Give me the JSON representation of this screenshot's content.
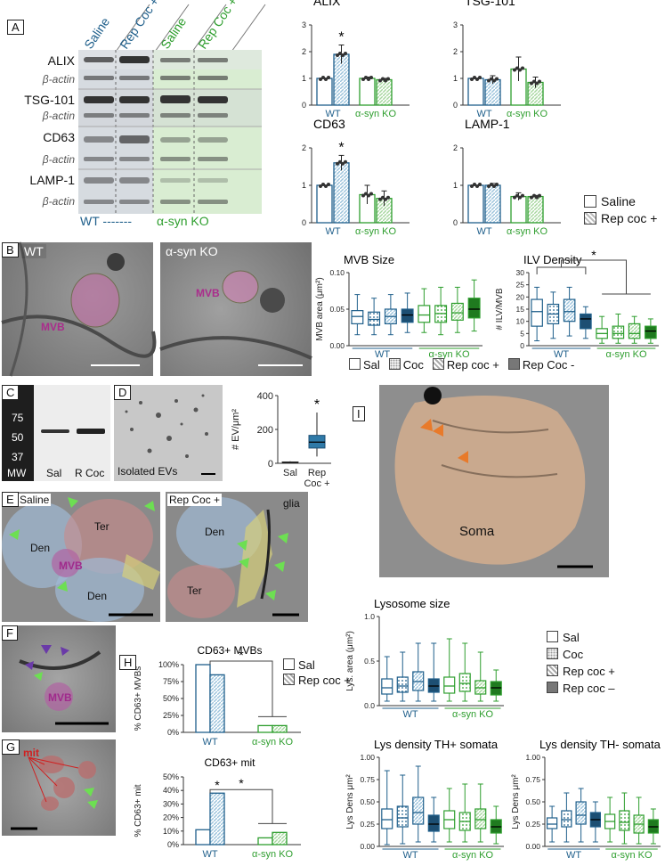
{
  "panels": {
    "A": {
      "label": "A",
      "lane_headers": [
        "Saline",
        "Rep Coc +",
        "Saline",
        "Rep Coc +"
      ],
      "blot_rows": [
        "ALIX",
        "β-actin",
        "TSG-101",
        "β-actin",
        "CD63",
        "β-actin",
        "LAMP-1",
        "β-actin"
      ],
      "group_wt": "WT -------",
      "group_ko": "α-syn KO"
    },
    "B": {
      "label": "B",
      "wt": "WT",
      "ko": "α-syn KO",
      "mvb": "MVB"
    },
    "C": {
      "label": "C",
      "mw": [
        "75",
        "50",
        "37"
      ],
      "mw_label": "MW",
      "lanes": [
        "Sal",
        "R Coc"
      ]
    },
    "D": {
      "label": "D",
      "caption": "Isolated EVs"
    },
    "E": {
      "label": "E",
      "saline": "Saline",
      "repcoc": "Rep Coc +",
      "glia": "glia",
      "den": "Den",
      "ter": "Ter",
      "mvb": "MVB"
    },
    "F": {
      "label": "F",
      "mvb": "MVB"
    },
    "G": {
      "label": "G",
      "mit": "mit"
    },
    "H": {
      "label": "H"
    },
    "I": {
      "label": "I",
      "soma": "Soma"
    }
  },
  "legends": {
    "A": [
      "Saline",
      "Rep coc +"
    ],
    "B": [
      "Sal",
      "Coc",
      "Rep coc +",
      "Rep Coc -"
    ],
    "H": [
      "Sal",
      "Rep coc +"
    ],
    "I": [
      "Sal",
      "Coc",
      "Rep coc +",
      "Rep coc –"
    ]
  },
  "colors": {
    "wt": "#1f5f8b",
    "ko": "#2e9e2e",
    "wt_fill": "#9cc3dc",
    "ko_fill": "#a8d8a0",
    "wt_dark": "#1d4f73",
    "ko_dark": "#1f7a1f"
  },
  "chart_data": [
    {
      "id": "alix",
      "type": "bar",
      "title": "ALIX",
      "groups": [
        "WT",
        "α-syn KO"
      ],
      "categories": [
        "Saline",
        "Rep coc +",
        "Saline",
        "Rep coc +"
      ],
      "values": [
        1.0,
        1.9,
        1.0,
        0.95
      ],
      "errors": [
        0.0,
        0.35,
        0.05,
        0.05
      ],
      "ylim": [
        0,
        3
      ],
      "yticks": [
        "0",
        "1",
        "2",
        "3"
      ],
      "significance": "*"
    },
    {
      "id": "tsg101",
      "type": "bar",
      "title": "TSG-101",
      "groups": [
        "WT",
        "α-syn KO"
      ],
      "categories": [
        "Saline",
        "Rep coc +",
        "Saline",
        "Rep coc +"
      ],
      "values": [
        1.0,
        0.95,
        1.35,
        0.85
      ],
      "errors": [
        0.0,
        0.15,
        0.45,
        0.2
      ],
      "ylim": [
        0,
        3
      ],
      "yticks": [
        "0",
        "1",
        "2",
        "3"
      ]
    },
    {
      "id": "cd63",
      "type": "bar",
      "title": "CD63",
      "groups": [
        "WT",
        "α-syn KO"
      ],
      "categories": [
        "Saline",
        "Rep coc +",
        "Saline",
        "Rep coc +"
      ],
      "values": [
        1.0,
        1.6,
        0.75,
        0.65
      ],
      "errors": [
        0.0,
        0.2,
        0.25,
        0.2
      ],
      "ylim": [
        0,
        2
      ],
      "yticks": [
        "0",
        "1",
        "2"
      ],
      "significance": "*"
    },
    {
      "id": "lamp1",
      "type": "bar",
      "title": "LAMP-1",
      "groups": [
        "WT",
        "α-syn KO"
      ],
      "categories": [
        "Saline",
        "Rep coc +",
        "Saline",
        "Rep coc +"
      ],
      "values": [
        1.0,
        1.0,
        0.7,
        0.7
      ],
      "errors": [
        0.0,
        0.05,
        0.1,
        0.03
      ],
      "ylim": [
        0,
        2
      ],
      "yticks": [
        "0",
        "1",
        "2"
      ]
    },
    {
      "id": "mvb_size",
      "type": "box",
      "title": "MVB Size",
      "ylabel": "MVB area (μm²)",
      "groups": [
        "WT",
        "α-syn KO"
      ],
      "categories": [
        "Sal",
        "Coc",
        "Rep coc +",
        "Rep Coc -",
        "Sal",
        "Coc",
        "Rep coc +",
        "Rep Coc -"
      ],
      "ylim": [
        0,
        0.1
      ],
      "yticks": [
        "0.00",
        "0.05",
        "0.10"
      ],
      "boxes": [
        [
          0.015,
          0.03,
          0.04,
          0.048,
          0.07
        ],
        [
          0.015,
          0.028,
          0.036,
          0.046,
          0.065
        ],
        [
          0.015,
          0.03,
          0.04,
          0.05,
          0.07
        ],
        [
          0.018,
          0.032,
          0.042,
          0.05,
          0.072
        ],
        [
          0.018,
          0.032,
          0.042,
          0.055,
          0.078
        ],
        [
          0.015,
          0.032,
          0.044,
          0.055,
          0.08
        ],
        [
          0.018,
          0.035,
          0.045,
          0.058,
          0.08
        ],
        [
          0.02,
          0.038,
          0.05,
          0.065,
          0.09
        ]
      ]
    },
    {
      "id": "ilv_density",
      "type": "box",
      "title": "ILV Density",
      "ylabel": "# ILV/MVB",
      "groups": [
        "WT",
        "α-syn KO"
      ],
      "categories": [
        "Sal",
        "Coc",
        "Rep coc +",
        "Rep Coc -",
        "Sal",
        "Coc",
        "Rep coc +",
        "Rep Coc -"
      ],
      "ylim": [
        0,
        30
      ],
      "yticks": [
        "0",
        "5",
        "10",
        "15",
        "20",
        "25",
        "30"
      ],
      "boxes": [
        [
          2,
          8,
          14,
          19,
          24
        ],
        [
          3,
          9,
          13,
          17,
          22
        ],
        [
          4,
          10,
          14,
          19,
          24
        ],
        [
          3,
          7,
          11,
          13,
          16
        ],
        [
          1,
          3,
          5,
          7,
          12
        ],
        [
          1,
          3,
          5,
          8,
          13
        ],
        [
          1,
          3,
          5,
          9,
          12
        ],
        [
          1,
          3,
          6,
          8,
          11
        ]
      ],
      "significance": "*"
    },
    {
      "id": "ev_density",
      "type": "box",
      "ylabel": "# EV/μm²",
      "categories": [
        "Sal",
        "Rep Coc +"
      ],
      "ylim": [
        0,
        400
      ],
      "yticks": [
        "0",
        "200",
        "400"
      ],
      "boxes": [
        [
          0,
          2,
          5,
          8,
          12
        ],
        [
          40,
          90,
          125,
          165,
          300
        ]
      ],
      "significance": "*"
    },
    {
      "id": "cd63_mvbs",
      "type": "bar",
      "title": "CD63+ MVBs",
      "ylabel": "% CD63+ MVBs",
      "groups": [
        "WT",
        "α-syn KO"
      ],
      "categories": [
        "Sal",
        "Rep coc +",
        "Sal",
        "Rep coc +"
      ],
      "values": [
        100,
        85,
        10,
        10
      ],
      "ylim": [
        0,
        100
      ],
      "yticks": [
        "0%",
        "25%",
        "50%",
        "75%",
        "100%"
      ],
      "significance": "*"
    },
    {
      "id": "cd63_mit",
      "type": "bar",
      "title": "CD63+ mit",
      "ylabel": "% CD63+ mit",
      "groups": [
        "WT",
        "α-syn KO"
      ],
      "categories": [
        "Sal",
        "Rep coc +",
        "Sal",
        "Rep coc +"
      ],
      "values": [
        11,
        38,
        5,
        9
      ],
      "ylim": [
        0,
        50
      ],
      "yticks": [
        "0%",
        "10%",
        "20%",
        "30%",
        "40%",
        "50%"
      ],
      "significance": "*"
    },
    {
      "id": "lys_size",
      "type": "box",
      "title": "Lysosome size",
      "ylabel": "Lys. area (μm²)",
      "groups": [
        "WT",
        "α-syn KO"
      ],
      "categories": [
        "Sal",
        "Coc",
        "Rep coc +",
        "Rep coc –",
        "Sal",
        "Coc",
        "Rep coc +",
        "Rep coc –"
      ],
      "ylim": [
        0,
        1
      ],
      "yticks": [
        "0.0",
        "0.5",
        "1.0"
      ],
      "boxes": [
        [
          0.05,
          0.13,
          0.2,
          0.3,
          0.55
        ],
        [
          0.05,
          0.15,
          0.22,
          0.32,
          0.6
        ],
        [
          0.05,
          0.17,
          0.27,
          0.38,
          0.7
        ],
        [
          0.05,
          0.15,
          0.22,
          0.3,
          0.7
        ],
        [
          0.05,
          0.14,
          0.22,
          0.32,
          0.75
        ],
        [
          0.05,
          0.16,
          0.25,
          0.36,
          0.7
        ],
        [
          0.05,
          0.13,
          0.2,
          0.28,
          0.6
        ],
        [
          0.05,
          0.12,
          0.2,
          0.27,
          0.4
        ]
      ]
    },
    {
      "id": "lys_th_pos",
      "type": "box",
      "title": "Lys density TH+ somata",
      "ylabel": "Lys Dens μm²",
      "groups": [
        "WT",
        "α-syn KO"
      ],
      "categories": [
        "Sal",
        "Coc",
        "Rep coc +",
        "Rep coc –",
        "Sal",
        "Coc",
        "Rep coc +",
        "Rep coc –"
      ],
      "ylim": [
        0,
        1
      ],
      "yticks": [
        "0.00",
        "0.25",
        "0.50",
        "0.75",
        "1.00"
      ],
      "boxes": [
        [
          0.02,
          0.2,
          0.3,
          0.42,
          0.85
        ],
        [
          0.03,
          0.22,
          0.32,
          0.45,
          0.8
        ],
        [
          0.05,
          0.25,
          0.38,
          0.55,
          0.9
        ],
        [
          0.05,
          0.17,
          0.25,
          0.35,
          0.55
        ],
        [
          0.05,
          0.2,
          0.3,
          0.4,
          0.65
        ],
        [
          0.05,
          0.18,
          0.28,
          0.38,
          0.7
        ],
        [
          0.05,
          0.2,
          0.3,
          0.42,
          0.7
        ],
        [
          0.03,
          0.15,
          0.22,
          0.3,
          0.45
        ]
      ]
    },
    {
      "id": "lys_th_neg",
      "type": "box",
      "title": "Lys density TH- somata",
      "ylabel": "Lys Dens μm²",
      "groups": [
        "WT",
        "α-syn KO"
      ],
      "categories": [
        "Sal",
        "Coc",
        "Rep coc +",
        "Rep coc –",
        "Sal",
        "Coc",
        "Rep coc +",
        "Rep coc –"
      ],
      "ylim": [
        0,
        1
      ],
      "yticks": [
        "0.00",
        "0.25",
        "0.50",
        "0.75",
        "1.00"
      ],
      "boxes": [
        [
          0.05,
          0.2,
          0.25,
          0.32,
          0.45
        ],
        [
          0.05,
          0.22,
          0.3,
          0.4,
          0.6
        ],
        [
          0.05,
          0.25,
          0.35,
          0.5,
          0.65
        ],
        [
          0.05,
          0.22,
          0.3,
          0.38,
          0.5
        ],
        [
          0.05,
          0.2,
          0.28,
          0.36,
          0.55
        ],
        [
          0.03,
          0.18,
          0.27,
          0.4,
          0.6
        ],
        [
          0.03,
          0.15,
          0.25,
          0.35,
          0.55
        ],
        [
          0.03,
          0.15,
          0.22,
          0.3,
          0.42
        ]
      ]
    }
  ]
}
